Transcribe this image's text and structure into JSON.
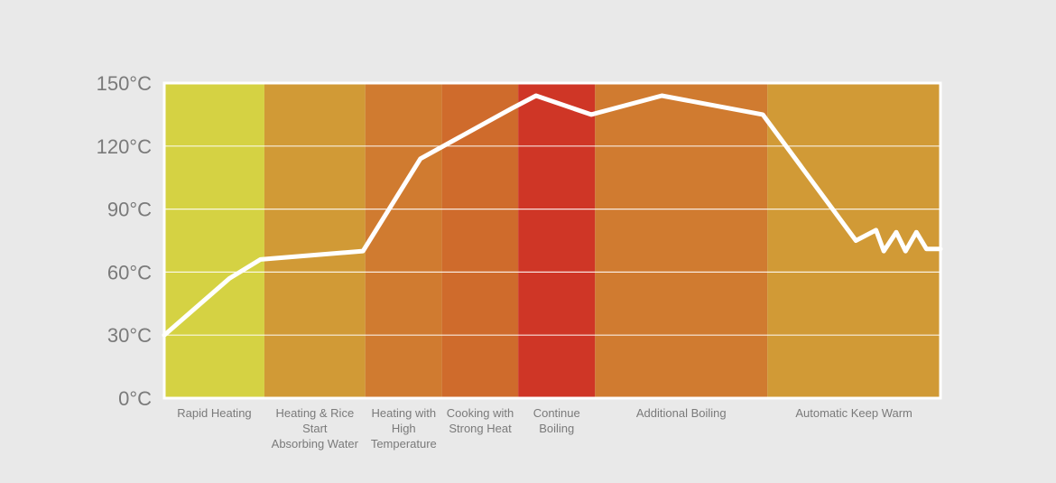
{
  "chart_data": {
    "type": "line",
    "title": "",
    "xlabel": "",
    "ylabel": "",
    "ylim": [
      0,
      150
    ],
    "y_unit": "°C",
    "y_ticks": [
      "0°C",
      "30°C",
      "60°C",
      "90°C",
      "120°C",
      "150°C"
    ],
    "y_tick_values": [
      0,
      30,
      60,
      90,
      120,
      150
    ],
    "grid": true,
    "x_range": [
      0,
      100
    ],
    "phases": [
      {
        "label": [
          "Rapid Heating"
        ],
        "start": 0,
        "end": 12.9,
        "color": "#d5d243"
      },
      {
        "label": [
          "Heating & Rice",
          "Start",
          "Absorbing Water"
        ],
        "start": 12.9,
        "end": 25.9,
        "color": "#d19a36"
      },
      {
        "label": [
          "Heating with",
          "High",
          "Temperature"
        ],
        "start": 25.9,
        "end": 35.8,
        "color": "#d07b30"
      },
      {
        "label": [
          "Cooking with",
          "Strong Heat"
        ],
        "start": 35.8,
        "end": 45.6,
        "color": "#cf6b2c"
      },
      {
        "label": [
          "Continue",
          "Boiling"
        ],
        "start": 45.6,
        "end": 55.5,
        "color": "#cf3626"
      },
      {
        "label": [
          "Additional Boiling"
        ],
        "start": 55.5,
        "end": 77.7,
        "color": "#d07b30"
      },
      {
        "label": [
          "Automatic Keep Warm"
        ],
        "start": 77.7,
        "end": 100,
        "color": "#d19a36"
      }
    ],
    "series": [
      {
        "color": "#ffffff",
        "points": [
          [
            0,
            30
          ],
          [
            8.4,
            57
          ],
          [
            12.4,
            66
          ],
          [
            25.6,
            70
          ],
          [
            33.0,
            114
          ],
          [
            44.8,
            138
          ],
          [
            47.9,
            144
          ],
          [
            55.0,
            135
          ],
          [
            64.1,
            144
          ],
          [
            77.1,
            135
          ],
          [
            89.1,
            75
          ],
          [
            91.7,
            80
          ],
          [
            92.7,
            70
          ],
          [
            94.3,
            79
          ],
          [
            95.5,
            70
          ],
          [
            96.9,
            79
          ],
          [
            98.2,
            71
          ],
          [
            100,
            71
          ]
        ]
      }
    ]
  }
}
